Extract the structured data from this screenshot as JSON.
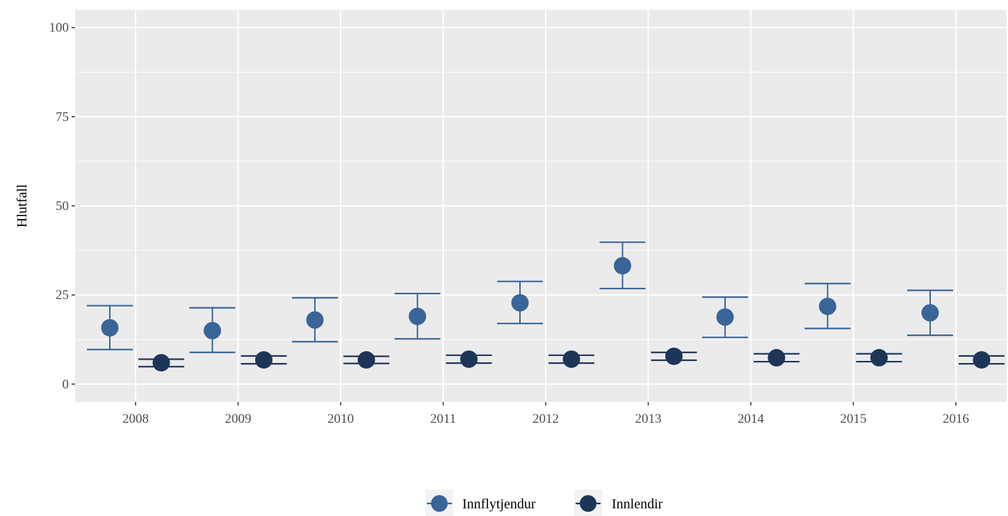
{
  "chart_data": {
    "type": "scatter",
    "title": "",
    "xlabel": "",
    "ylabel": "Hlutfall",
    "ylim": [
      -5,
      105
    ],
    "yticks": [
      0,
      25,
      50,
      75,
      100
    ],
    "grid": true,
    "legend_position": "bottom",
    "categories": [
      "2008",
      "2009",
      "2010",
      "2011",
      "2012",
      "2013",
      "2014",
      "2015",
      "2016"
    ],
    "series": [
      {
        "name": "Innflytjendur",
        "color": "#3a6598",
        "values": [
          15.8,
          15.0,
          18.0,
          19.0,
          22.8,
          33.2,
          18.8,
          21.8,
          20.0
        ],
        "lower": [
          9.7,
          8.9,
          11.9,
          12.7,
          17.0,
          26.8,
          13.1,
          15.6,
          13.7
        ],
        "upper": [
          22.0,
          21.4,
          24.2,
          25.4,
          28.8,
          39.8,
          24.4,
          28.2,
          26.3
        ]
      },
      {
        "name": "Innlendir",
        "color": "#1d3557",
        "values": [
          6.0,
          6.8,
          6.8,
          7.0,
          7.0,
          7.8,
          7.4,
          7.4,
          6.8
        ],
        "lower": [
          4.9,
          5.7,
          5.8,
          5.9,
          5.9,
          6.7,
          6.3,
          6.3,
          5.7
        ],
        "upper": [
          7.0,
          7.9,
          7.8,
          8.1,
          8.1,
          8.9,
          8.5,
          8.5,
          7.9
        ]
      }
    ]
  }
}
